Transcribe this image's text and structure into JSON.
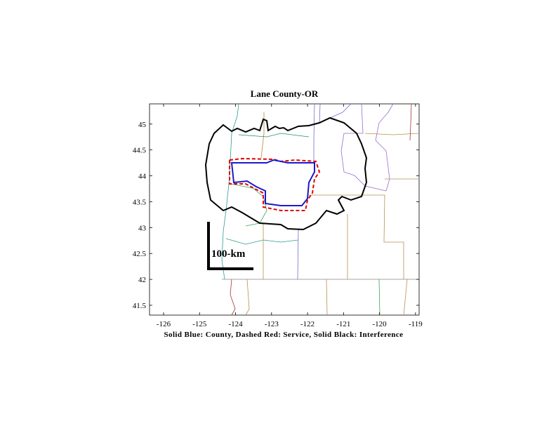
{
  "chart_data": {
    "type": "map",
    "title": "Lane County-OR",
    "xlabel": "Solid Blue: County, Dashed Red: Service, Solid Black: Interference",
    "scale_label": "100-km",
    "xlim": [
      -126.39,
      -118.9
    ],
    "ylim": [
      41.31,
      45.39
    ],
    "xticks": [
      -126,
      -125,
      -124,
      -123,
      -122,
      -121,
      -120,
      -119
    ],
    "yticks": [
      41.5,
      42,
      42.5,
      43,
      43.5,
      44,
      44.5,
      45
    ]
  }
}
